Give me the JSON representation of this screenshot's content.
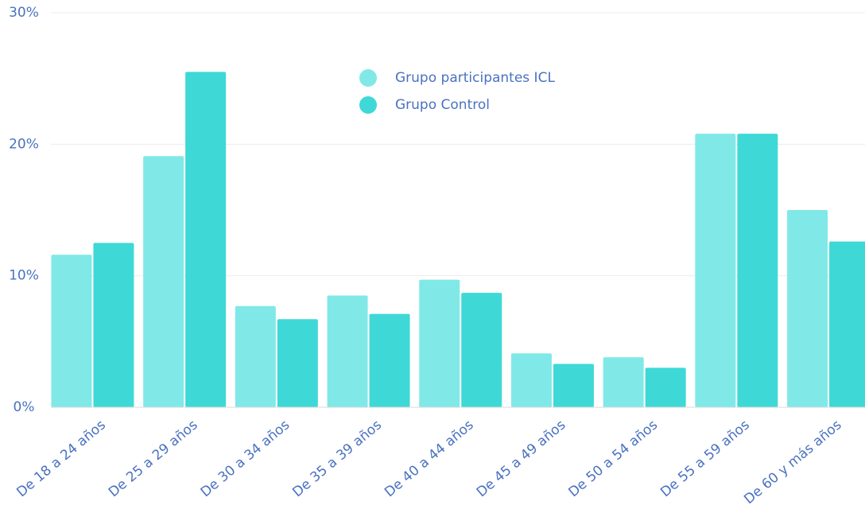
{
  "chart_data": {
    "type": "bar",
    "categories": [
      "De 18 a 24 años",
      "De 25 a 29 años",
      "De 30 a 34 años",
      "De 35 a 39 años",
      "De 40 a 44 años",
      "De 45 a 49 años",
      "De 50 a 54 años",
      "De 55 a 59 años",
      "De 60 y más años"
    ],
    "series": [
      {
        "name": "Grupo participantes ICL",
        "color": "#80e9e7",
        "values": [
          11.6,
          19.1,
          7.7,
          8.5,
          9.7,
          4.1,
          3.8,
          20.8,
          15.0
        ]
      },
      {
        "name": "Grupo Control",
        "color": "#3ed9d6",
        "values": [
          12.5,
          25.5,
          6.7,
          7.1,
          8.7,
          3.3,
          3.0,
          20.8,
          12.6
        ]
      }
    ],
    "ylim": [
      0,
      30
    ],
    "yticks": [
      {
        "value": 0,
        "label": "0%"
      },
      {
        "value": 10,
        "label": "10%"
      },
      {
        "value": 20,
        "label": "20%"
      },
      {
        "value": 30,
        "label": "30%"
      }
    ],
    "grid": true
  }
}
